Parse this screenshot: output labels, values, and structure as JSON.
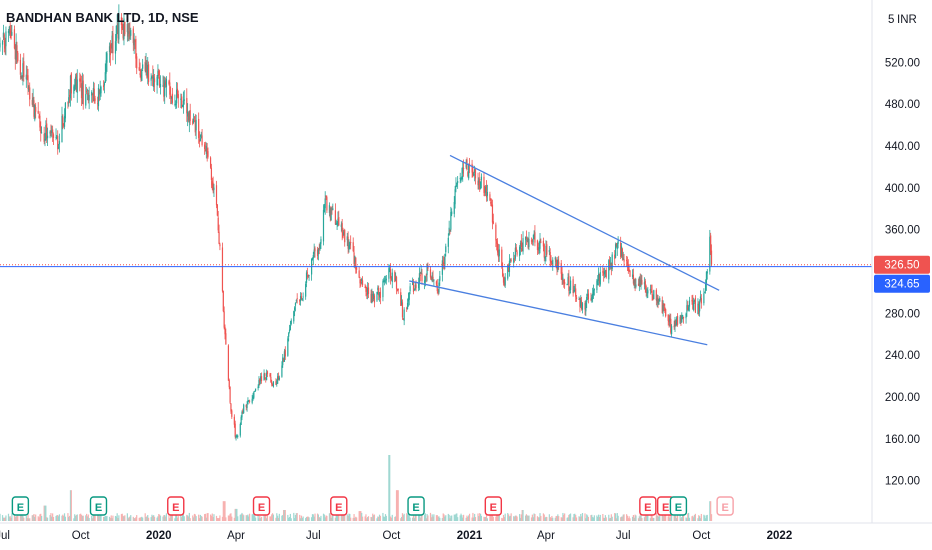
{
  "chart_data": {
    "type": "candlestick",
    "title": "BANDHAN BANK LTD, 1D, NSE",
    "currency": "INR",
    "price_axis": {
      "ticks": [
        120,
        160,
        200,
        240,
        280,
        320,
        360,
        400,
        440,
        480,
        520
      ],
      "tick_labels": [
        "120.00",
        "160.00",
        "200.00",
        "240.00",
        "280.00",
        "",
        "360.00",
        "400.00",
        "440.00",
        "480.00",
        "520.00"
      ],
      "top_label": "5",
      "range": [
        101,
        562
      ]
    },
    "time_axis": {
      "labels": [
        "Jul",
        "Oct",
        "2020",
        "Apr",
        "Jul",
        "Oct",
        "2021",
        "Apr",
        "Jul",
        "Oct",
        "2022"
      ],
      "range": [
        "2019-06-28",
        "2022-04-20"
      ]
    },
    "price_markers": [
      {
        "value": 326.5,
        "label": "326.50",
        "color": "#ef5350",
        "line_style": "dotted"
      },
      {
        "value": 324.65,
        "label": "324.65",
        "color": "#2962ff",
        "line_style": "solid"
      }
    ],
    "trendlines": [
      {
        "name": "upper",
        "color": "#4a7fe0",
        "points": [
          [
            "2020-12-09",
            431
          ],
          [
            "2021-10-22",
            302
          ]
        ]
      },
      {
        "name": "lower",
        "color": "#4a7fe0",
        "points": [
          [
            "2020-10-22",
            311
          ],
          [
            "2021-10-08",
            250
          ]
        ]
      }
    ],
    "price_path": [
      [
        "2019-06-28",
        535
      ],
      [
        "2019-07-10",
        548
      ],
      [
        "2019-07-25",
        510
      ],
      [
        "2019-08-05",
        478
      ],
      [
        "2019-08-20",
        452
      ],
      [
        "2019-09-05",
        445
      ],
      [
        "2019-09-20",
        500
      ],
      [
        "2019-10-05",
        490
      ],
      [
        "2019-10-20",
        485
      ],
      [
        "2019-11-05",
        530
      ],
      [
        "2019-11-15",
        555
      ],
      [
        "2019-11-28",
        545
      ],
      [
        "2019-12-10",
        515
      ],
      [
        "2019-12-26",
        505
      ],
      [
        "2020-01-10",
        495
      ],
      [
        "2020-01-25",
        485
      ],
      [
        "2020-02-05",
        470
      ],
      [
        "2020-02-20",
        445
      ],
      [
        "2020-03-02",
        420
      ],
      [
        "2020-03-08",
        385
      ],
      [
        "2020-03-13",
        340
      ],
      [
        "2020-03-18",
        270
      ],
      [
        "2020-03-25",
        195
      ],
      [
        "2020-04-01",
        160
      ],
      [
        "2020-04-10",
        190
      ],
      [
        "2020-04-22",
        205
      ],
      [
        "2020-05-05",
        222
      ],
      [
        "2020-05-18",
        210
      ],
      [
        "2020-05-28",
        240
      ],
      [
        "2020-06-08",
        285
      ],
      [
        "2020-06-18",
        300
      ],
      [
        "2020-06-29",
        330
      ],
      [
        "2020-07-08",
        345
      ],
      [
        "2020-07-15",
        385
      ],
      [
        "2020-07-24",
        375
      ],
      [
        "2020-08-05",
        355
      ],
      [
        "2020-08-14",
        345
      ],
      [
        "2020-08-25",
        310
      ],
      [
        "2020-09-07",
        295
      ],
      [
        "2020-09-18",
        300
      ],
      [
        "2020-09-28",
        320
      ],
      [
        "2020-10-08",
        305
      ],
      [
        "2020-10-15",
        278
      ],
      [
        "2020-10-22",
        300
      ],
      [
        "2020-11-02",
        315
      ],
      [
        "2020-11-12",
        320
      ],
      [
        "2020-11-24",
        300
      ],
      [
        "2020-12-01",
        330
      ],
      [
        "2020-12-09",
        365
      ],
      [
        "2020-12-17",
        405
      ],
      [
        "2020-12-24",
        420
      ],
      [
        "2021-01-05",
        410
      ],
      [
        "2021-01-15",
        405
      ],
      [
        "2021-01-25",
        390
      ],
      [
        "2021-02-03",
        345
      ],
      [
        "2021-02-10",
        310
      ],
      [
        "2021-02-20",
        335
      ],
      [
        "2021-03-05",
        345
      ],
      [
        "2021-03-18",
        350
      ],
      [
        "2021-03-30",
        340
      ],
      [
        "2021-04-12",
        330
      ],
      [
        "2021-04-22",
        315
      ],
      [
        "2021-05-05",
        300
      ],
      [
        "2021-05-14",
        285
      ],
      [
        "2021-05-25",
        300
      ],
      [
        "2021-06-04",
        315
      ],
      [
        "2021-06-15",
        325
      ],
      [
        "2021-06-24",
        345
      ],
      [
        "2021-07-02",
        335
      ],
      [
        "2021-07-15",
        310
      ],
      [
        "2021-07-28",
        305
      ],
      [
        "2021-08-10",
        295
      ],
      [
        "2021-08-20",
        280
      ],
      [
        "2021-08-27",
        265
      ],
      [
        "2021-09-06",
        275
      ],
      [
        "2021-09-16",
        290
      ],
      [
        "2021-09-28",
        285
      ],
      [
        "2021-10-04",
        300
      ],
      [
        "2021-10-08",
        325
      ],
      [
        "2021-10-11",
        347
      ],
      [
        "2021-10-13",
        326.5
      ]
    ],
    "volume": {
      "baseline_label": "",
      "spikes": [
        [
          "2019-08-20",
          0.7
        ],
        [
          "2019-09-20",
          1.4
        ],
        [
          "2020-03-18",
          0.9
        ],
        [
          "2020-04-01",
          0.55
        ],
        [
          "2020-05-28",
          0.5
        ],
        [
          "2020-07-24",
          0.35
        ],
        [
          "2020-08-25",
          0.45
        ],
        [
          "2020-09-28",
          3.0
        ],
        [
          "2020-10-08",
          1.4
        ],
        [
          "2021-01-25",
          0.6
        ],
        [
          "2021-02-03",
          0.8
        ],
        [
          "2021-03-05",
          0.5
        ],
        [
          "2021-07-28",
          0.45
        ],
        [
          "2021-10-11",
          0.9
        ]
      ]
    },
    "events": [
      {
        "date": "2019-07-22",
        "label": "E",
        "color": "#089981"
      },
      {
        "date": "2019-10-22",
        "label": "E",
        "color": "#089981"
      },
      {
        "date": "2020-01-21",
        "label": "E",
        "color": "#f23645"
      },
      {
        "date": "2020-05-01",
        "label": "E",
        "color": "#f23645"
      },
      {
        "date": "2020-07-31",
        "label": "E",
        "color": "#f23645"
      },
      {
        "date": "2020-10-30",
        "label": "E",
        "color": "#089981"
      },
      {
        "date": "2021-01-29",
        "label": "E",
        "color": "#f23645"
      },
      {
        "date": "2021-07-30",
        "label": "E",
        "color": "#f23645"
      },
      {
        "date": "2021-08-20",
        "label": "E",
        "color": "#f23645"
      },
      {
        "date": "2021-09-04",
        "label": "E",
        "color": "#089981"
      },
      {
        "date": "2021-10-29",
        "label": "E",
        "color": "#f7a1a8",
        "future": true
      }
    ],
    "colors": {
      "up": "#26a69a",
      "down": "#ef5350",
      "trendline": "#4a7fe0"
    }
  }
}
